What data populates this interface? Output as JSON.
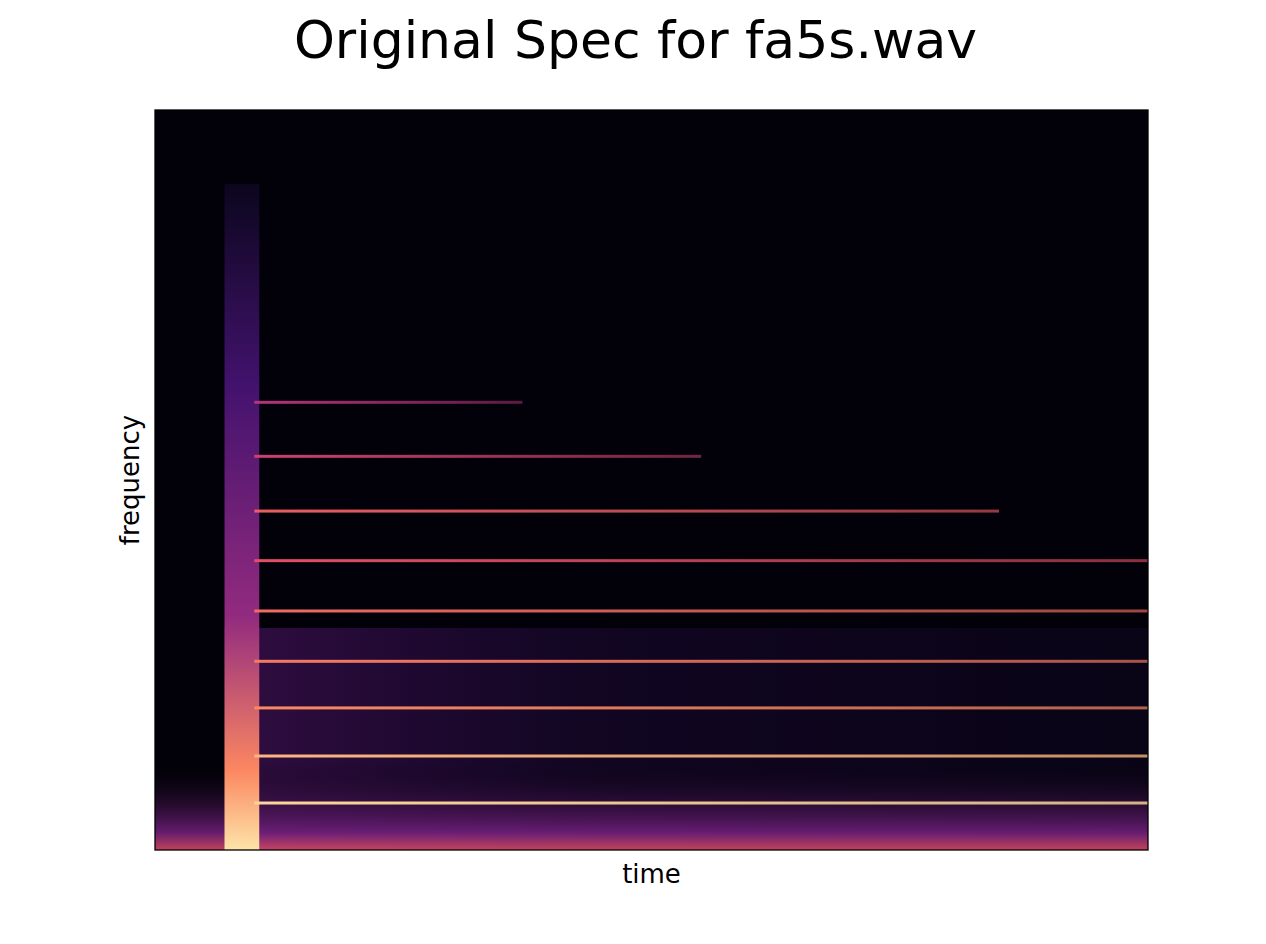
{
  "chart_data": {
    "type": "spectrogram",
    "title": "Original Spec for fa5s.wav",
    "x_label": "time",
    "y_label": "frequency",
    "xlim": [
      0,
      1
    ],
    "ylim": [
      0,
      1
    ],
    "tick_labels": false,
    "transient": {
      "start": 0.07,
      "end": 0.105,
      "max_frequency": 0.9
    },
    "harmonics": [
      {
        "frequency": 0.0635,
        "intensity": 0.95,
        "start": 0.1,
        "end": 1.0
      },
      {
        "frequency": 0.127,
        "intensity": 0.85,
        "start": 0.1,
        "end": 1.0
      },
      {
        "frequency": 0.192,
        "intensity": 0.7,
        "start": 0.1,
        "end": 1.0
      },
      {
        "frequency": 0.255,
        "intensity": 0.65,
        "start": 0.1,
        "end": 1.0
      },
      {
        "frequency": 0.323,
        "intensity": 0.6,
        "start": 0.1,
        "end": 1.0
      },
      {
        "frequency": 0.391,
        "intensity": 0.5,
        "start": 0.1,
        "end": 1.0
      },
      {
        "frequency": 0.458,
        "intensity": 0.55,
        "start": 0.1,
        "end": 0.85
      },
      {
        "frequency": 0.532,
        "intensity": 0.4,
        "start": 0.1,
        "end": 0.55
      },
      {
        "frequency": 0.605,
        "intensity": 0.3,
        "start": 0.1,
        "end": 0.37
      }
    ]
  }
}
